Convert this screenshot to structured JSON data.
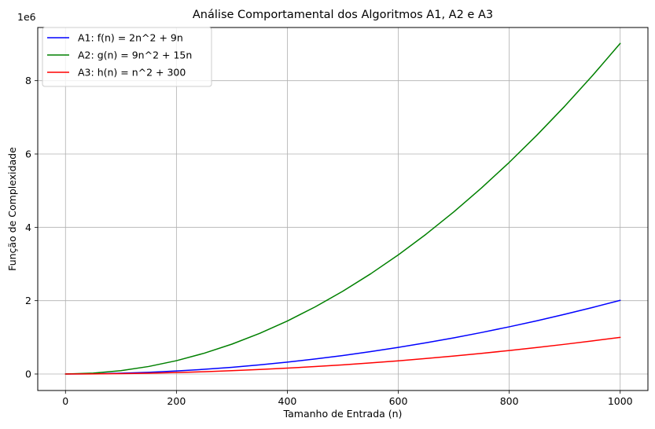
{
  "chart_data": {
    "type": "line",
    "title": "Análise Comportamental dos Algoritmos A1, A2 e A3",
    "xlabel": "Tamanho de Entrada (n)",
    "ylabel": "Função de Complexidade",
    "offset_text": "1e6",
    "xlim": [
      -50,
      1050
    ],
    "ylim": [
      -450000,
      9450000
    ],
    "x_ticks": [
      0,
      200,
      400,
      600,
      800,
      1000
    ],
    "x_tick_labels": [
      "0",
      "200",
      "400",
      "600",
      "800",
      "1000"
    ],
    "y_ticks": [
      0,
      2000000,
      4000000,
      6000000,
      8000000
    ],
    "y_tick_labels": [
      "0",
      "2",
      "4",
      "6",
      "8"
    ],
    "grid": true,
    "legend_position": "top-left",
    "x": [
      0,
      50,
      100,
      150,
      200,
      250,
      300,
      350,
      400,
      450,
      500,
      550,
      600,
      650,
      700,
      750,
      800,
      850,
      900,
      950,
      1000
    ],
    "series": [
      {
        "name": "A1: f(n) = 2n^2 + 9n",
        "color": "#0000ff",
        "values": [
          0,
          5450,
          20900,
          46350,
          81800,
          127250,
          182700,
          248150,
          323600,
          409050,
          504500,
          609950,
          725400,
          850850,
          986300,
          1131750,
          1287200,
          1452650,
          1628100,
          1813550,
          2009000
        ]
      },
      {
        "name": "A2: g(n) = 9n^2 + 15n",
        "color": "#008000",
        "values": [
          0,
          23250,
          91500,
          204750,
          363000,
          566250,
          814500,
          1107750,
          1446000,
          1829250,
          2257500,
          2730750,
          3249000,
          3812250,
          4420500,
          5073750,
          5772000,
          6515250,
          7303500,
          8136750,
          9015000
        ]
      },
      {
        "name": "A3: h(n) = n^2 + 300",
        "color": "#ff0000",
        "values": [
          300,
          2800,
          10300,
          22800,
          40300,
          62800,
          90300,
          122800,
          160300,
          202800,
          250300,
          302800,
          360300,
          422800,
          490300,
          562800,
          640300,
          722800,
          810300,
          902800,
          1000300
        ]
      }
    ]
  }
}
